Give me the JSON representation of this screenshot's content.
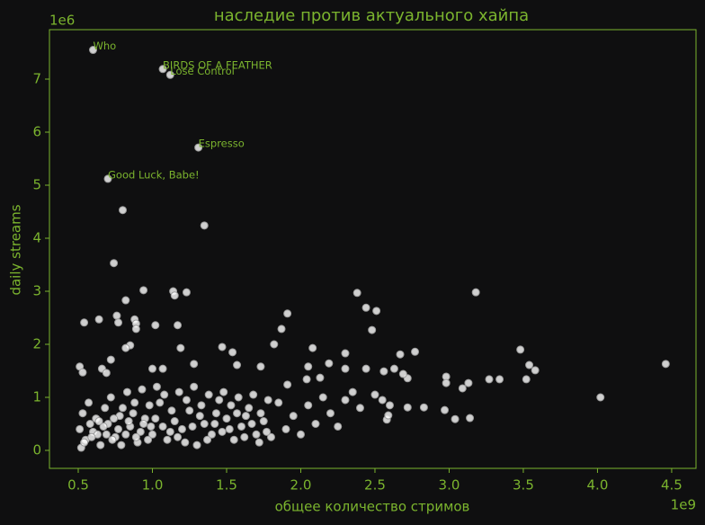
{
  "chart_data": {
    "type": "scatter",
    "title": "наследие против актуального хайпа",
    "xlabel": "общее количество стримов",
    "ylabel": "daily streams",
    "x_offset_label": "1e9",
    "y_offset_label": "1e6",
    "color": "#ffffff",
    "edgecolor": "#9a9a9a",
    "axis_color": "#7bb42e",
    "xlim": [
      0.306,
      4.664
    ],
    "ylim": [
      -0.339,
      7.932
    ],
    "xticks": [
      0.5,
      {
        "value": 1,
        "label": "1.0"
      },
      1.5,
      {
        "value": 2,
        "label": "2.0"
      },
      2.5,
      {
        "value": 3,
        "label": "3.0"
      },
      3.5,
      {
        "value": 4,
        "label": "4.0"
      },
      4.5
    ],
    "yticks": [
      0,
      1,
      2,
      3,
      4,
      5,
      6,
      7
    ],
    "x": [
      0.6,
      1.07,
      1.12,
      1.31,
      0.7,
      0.8,
      1.35,
      0.74,
      0.94,
      1.14,
      1.23,
      1.15,
      0.82,
      2.38,
      3.18,
      1.91,
      2.44,
      2.51,
      0.54,
      0.64,
      0.76,
      0.77,
      0.88,
      0.89,
      1.02,
      1.17,
      0.89,
      2.48,
      1.87,
      0.85,
      0.82,
      1.19,
      1.47,
      1.82,
      2.08,
      2.77,
      3.48,
      1.54,
      2.3,
      2.67,
      3.54,
      4.46,
      3.58,
      4.02,
      3.27,
      3.34,
      3.52,
      3.13,
      3.09,
      2.98,
      2.98,
      2.97,
      3.04,
      3.14,
      2.83,
      2.72,
      2.44,
      2.56,
      2.63,
      2.72,
      2.69,
      2.58,
      2.59,
      0.51,
      0.53,
      0.66,
      0.69,
      0.72,
      1.0,
      1.07,
      1.28,
      1.57,
      1.73,
      2.05,
      2.19,
      2.3,
      2.04,
      2.13,
      1.91,
      0.52,
      0.55,
      0.6,
      0.65,
      0.7,
      0.75,
      0.8,
      0.85,
      0.9,
      0.95,
      1.0,
      1.05,
      1.1,
      1.15,
      1.2,
      1.25,
      1.3,
      1.35,
      1.4,
      1.45,
      1.5,
      1.55,
      1.6,
      1.65,
      1.7,
      1.75,
      1.8,
      1.85,
      1.9,
      1.95,
      2.0,
      2.05,
      2.1,
      2.15,
      2.2,
      2.25,
      2.3,
      2.35,
      2.4,
      2.5,
      2.55,
      2.6,
      0.53,
      0.57,
      0.62,
      0.68,
      0.72,
      0.78,
      0.83,
      0.88,
      0.93,
      0.98,
      1.03,
      1.08,
      1.13,
      1.18,
      1.23,
      1.28,
      1.33,
      1.38,
      1.43,
      1.48,
      1.53,
      1.58,
      1.63,
      1.68,
      1.73,
      1.78,
      0.51,
      0.58,
      0.63,
      0.67,
      0.73,
      0.77,
      0.82,
      0.87,
      0.92,
      0.97,
      1.02,
      1.07,
      1.12,
      1.17,
      1.22,
      1.27,
      1.32,
      1.37,
      1.42,
      1.47,
      1.52,
      1.57,
      1.62,
      1.67,
      1.72,
      1.77,
      0.54,
      0.59,
      0.64,
      0.69,
      0.74,
      0.79,
      0.84,
      0.89,
      0.94,
      0.99
    ],
    "values": [
      7.55,
      7.19,
      7.08,
      5.71,
      5.12,
      4.53,
      4.24,
      3.53,
      3.02,
      3.0,
      2.98,
      2.92,
      2.83,
      2.97,
      2.98,
      2.58,
      2.69,
      2.63,
      2.41,
      2.47,
      2.54,
      2.41,
      2.47,
      2.39,
      2.36,
      2.36,
      2.29,
      2.27,
      2.29,
      1.98,
      1.93,
      1.93,
      1.95,
      2.0,
      1.93,
      1.86,
      1.9,
      1.85,
      1.83,
      1.81,
      1.61,
      1.63,
      1.51,
      1.0,
      1.34,
      1.34,
      1.34,
      1.27,
      1.17,
      1.39,
      1.27,
      0.76,
      0.59,
      0.61,
      0.81,
      0.81,
      1.54,
      1.49,
      1.54,
      1.36,
      1.44,
      0.58,
      0.66,
      1.58,
      1.47,
      1.54,
      1.46,
      1.71,
      1.54,
      1.54,
      1.63,
      1.61,
      1.58,
      1.58,
      1.64,
      1.54,
      1.34,
      1.37,
      1.24,
      0.05,
      0.2,
      0.35,
      0.1,
      0.5,
      0.25,
      0.8,
      0.45,
      0.15,
      0.6,
      0.3,
      0.9,
      0.2,
      0.55,
      0.4,
      0.75,
      0.1,
      0.5,
      0.3,
      0.95,
      0.6,
      0.2,
      0.45,
      0.8,
      0.3,
      0.55,
      0.25,
      0.9,
      0.4,
      0.65,
      0.3,
      0.85,
      0.5,
      1.0,
      0.7,
      0.45,
      0.95,
      1.1,
      0.8,
      1.05,
      0.95,
      0.85,
      0.7,
      0.9,
      0.6,
      0.8,
      1.0,
      0.65,
      1.1,
      0.9,
      1.15,
      0.85,
      1.2,
      1.05,
      0.75,
      1.1,
      0.95,
      1.2,
      0.85,
      1.05,
      0.7,
      1.1,
      0.85,
      1.0,
      0.65,
      1.05,
      0.7,
      0.95,
      0.4,
      0.5,
      0.3,
      0.45,
      0.2,
      0.4,
      0.3,
      0.7,
      0.35,
      0.2,
      0.6,
      0.45,
      0.35,
      0.25,
      0.15,
      0.45,
      0.65,
      0.2,
      0.5,
      0.35,
      0.4,
      0.7,
      0.25,
      0.5,
      0.15,
      0.35,
      0.15,
      0.25,
      0.55,
      0.3,
      0.6,
      0.1,
      0.55,
      0.25,
      0.5,
      0.45
    ],
    "annotations": [
      {
        "text": "Who",
        "x": 0.6,
        "y": 7.55
      },
      {
        "text": "BIRDS OF A FEATHER",
        "x": 1.07,
        "y": 7.19
      },
      {
        "text": "Lose Control",
        "x": 1.12,
        "y": 7.08
      },
      {
        "text": "Espresso",
        "x": 1.31,
        "y": 5.71
      },
      {
        "text": "Good Luck, Babe!",
        "x": 0.7,
        "y": 5.12
      }
    ]
  }
}
